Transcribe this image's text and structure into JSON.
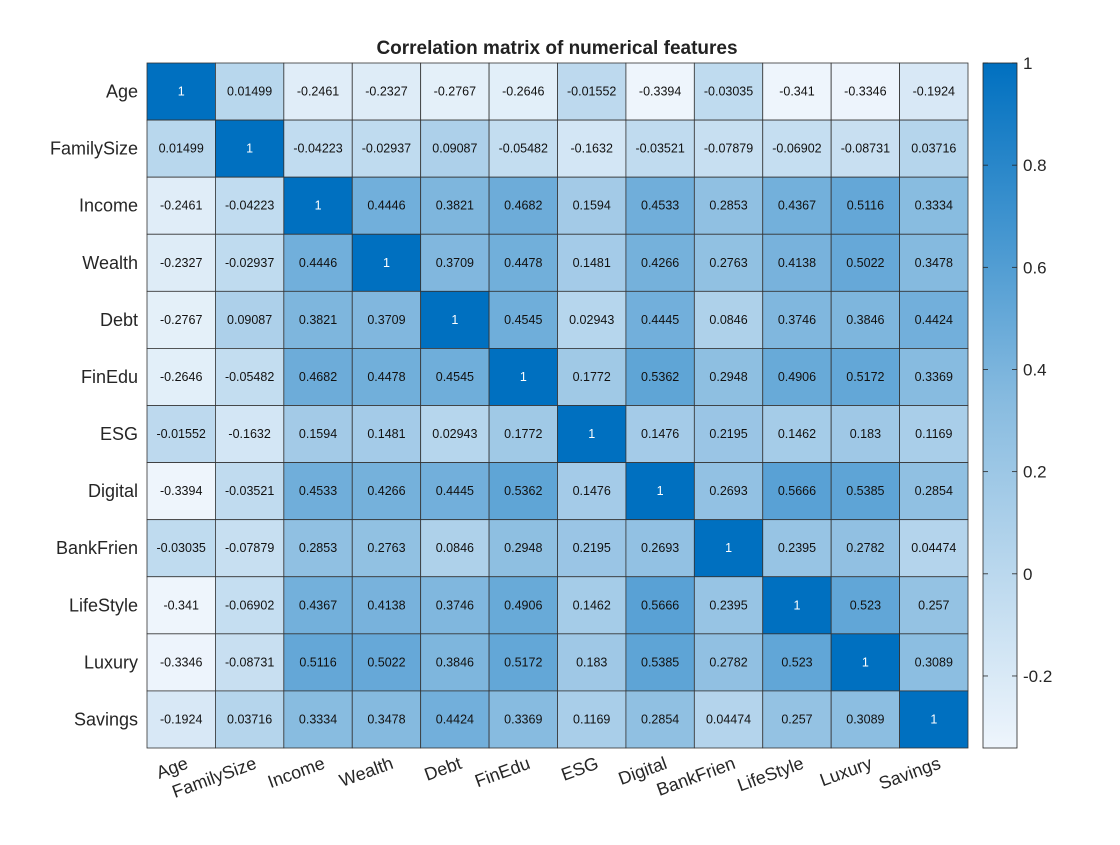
{
  "chart_data": {
    "type": "heatmap",
    "title": "Correlation matrix of numerical features",
    "xlabel": "",
    "ylabel": "",
    "labels": [
      "Age",
      "FamilySize",
      "Income",
      "Wealth",
      "Debt",
      "FinEdu",
      "ESG",
      "Digital",
      "BankFrien",
      "LifeStyle",
      "Luxury",
      "Savings"
    ],
    "cell_text": [
      [
        "1",
        "0.01499",
        "-0.2461",
        "-0.2327",
        "-0.2767",
        "-0.2646",
        "-0.01552",
        "-0.3394",
        "-0.03035",
        "-0.341",
        "-0.3346",
        "-0.1924"
      ],
      [
        "0.01499",
        "1",
        "-0.04223",
        "-0.02937",
        "0.09087",
        "-0.05482",
        "-0.1632",
        "-0.03521",
        "-0.07879",
        "-0.06902",
        "-0.08731",
        "0.03716"
      ],
      [
        "-0.2461",
        "-0.04223",
        "1",
        "0.4446",
        "0.3821",
        "0.4682",
        "0.1594",
        "0.4533",
        "0.2853",
        "0.4367",
        "0.5116",
        "0.3334"
      ],
      [
        "-0.2327",
        "-0.02937",
        "0.4446",
        "1",
        "0.3709",
        "0.4478",
        "0.1481",
        "0.4266",
        "0.2763",
        "0.4138",
        "0.5022",
        "0.3478"
      ],
      [
        "-0.2767",
        "0.09087",
        "0.3821",
        "0.3709",
        "1",
        "0.4545",
        "0.02943",
        "0.4445",
        "0.0846",
        "0.3746",
        "0.3846",
        "0.4424"
      ],
      [
        "-0.2646",
        "-0.05482",
        "0.4682",
        "0.4478",
        "0.4545",
        "1",
        "0.1772",
        "0.5362",
        "0.2948",
        "0.4906",
        "0.5172",
        "0.3369"
      ],
      [
        "-0.01552",
        "-0.1632",
        "0.1594",
        "0.1481",
        "0.02943",
        "0.1772",
        "1",
        "0.1476",
        "0.2195",
        "0.1462",
        "0.183",
        "0.1169"
      ],
      [
        "-0.3394",
        "-0.03521",
        "0.4533",
        "0.4266",
        "0.4445",
        "0.5362",
        "0.1476",
        "1",
        "0.2693",
        "0.5666",
        "0.5385",
        "0.2854"
      ],
      [
        "-0.03035",
        "-0.07879",
        "0.2853",
        "0.2763",
        "0.0846",
        "0.2948",
        "0.2195",
        "0.2693",
        "1",
        "0.2395",
        "0.2782",
        "0.04474"
      ],
      [
        "-0.341",
        "-0.06902",
        "0.4367",
        "0.4138",
        "0.3746",
        "0.4906",
        "0.1462",
        "0.5666",
        "0.2395",
        "1",
        "0.523",
        "0.257"
      ],
      [
        "-0.3346",
        "-0.08731",
        "0.5116",
        "0.5022",
        "0.3846",
        "0.5172",
        "0.183",
        "0.5385",
        "0.2782",
        "0.523",
        "1",
        "0.3089"
      ],
      [
        "-0.1924",
        "0.03716",
        "0.3334",
        "0.3478",
        "0.4424",
        "0.3369",
        "0.1169",
        "0.2854",
        "0.04474",
        "0.257",
        "0.3089",
        "1"
      ]
    ],
    "color_range": [
      -0.341,
      1
    ],
    "colorbar_ticks": [
      "-0.2",
      "0",
      "0.2",
      "0.4",
      "0.6",
      "0.8",
      "1"
    ],
    "colormap": {
      "low": "#EEF5FC",
      "mid": "#89BCE0",
      "high": "#0070C0"
    },
    "grid": true,
    "colorbar_position": "right"
  }
}
